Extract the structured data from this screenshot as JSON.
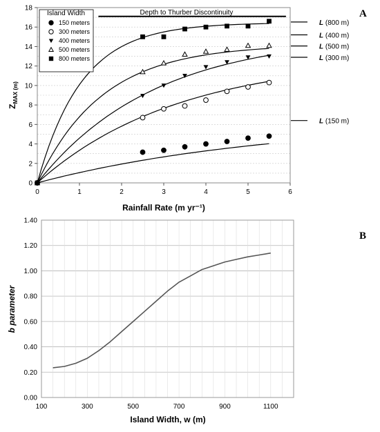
{
  "panels": {
    "a_label": "A",
    "b_label": "B"
  },
  "chart_data": [
    {
      "type": "scatter",
      "title": "",
      "xlabel": "Rainfall Rate (m yr⁻¹)",
      "ylabel": "ZMAX (m)",
      "xlim": [
        0,
        6
      ],
      "ylim": [
        0,
        18
      ],
      "xticks": [
        0,
        1,
        2,
        3,
        4,
        5,
        6
      ],
      "yticks": [
        0,
        2,
        4,
        6,
        8,
        10,
        12,
        14,
        16,
        18
      ],
      "grid": "horizontal dotted",
      "legend_title": "Island Width",
      "legend_position": "top-left",
      "annotation": "Depth to Thurber Discontinuity",
      "discontinuity_depth": 17.1,
      "series": [
        {
          "name": "150 meters",
          "marker": "circle-filled",
          "x": [
            0,
            2.5,
            3,
            3.5,
            4,
            4.5,
            5,
            5.5
          ],
          "y": [
            0,
            3.15,
            3.35,
            3.7,
            4.0,
            4.25,
            4.6,
            4.8
          ],
          "fit_asymptote": 6.4,
          "fit_k": 0.18,
          "limit_label": "L (150 m)"
        },
        {
          "name": "300 meters",
          "marker": "circle-open",
          "x": [
            0,
            2.5,
            3,
            3.5,
            4,
            4.5,
            5,
            5.5
          ],
          "y": [
            0,
            6.7,
            7.6,
            7.9,
            8.5,
            9.4,
            9.85,
            10.3
          ],
          "fit_asymptote": 12.9,
          "fit_k": 0.3,
          "limit_label": "L (300 m)"
        },
        {
          "name": "400 meters",
          "marker": "triangle-down-filled",
          "x": [
            0,
            2.5,
            3,
            3.5,
            4,
            4.5,
            5,
            5.5
          ],
          "y": [
            0,
            8.95,
            10.0,
            11.0,
            11.9,
            12.4,
            12.9,
            13.0
          ],
          "fit_asymptote": 15.2,
          "fit_k": 0.36,
          "limit_label": "L (400 m)"
        },
        {
          "name": "500 meters",
          "marker": "triangle-up-open",
          "x": [
            0,
            2.5,
            3,
            3.5,
            4,
            4.5,
            5,
            5.5
          ],
          "y": [
            0,
            11.4,
            12.3,
            13.2,
            13.5,
            13.7,
            14.1,
            14.1
          ],
          "fit_asymptote": 14.2,
          "fit_k": 0.65,
          "limit_label": "L (500 m)"
        },
        {
          "name": "800 meters",
          "marker": "square-filled",
          "x": [
            0,
            2.5,
            3,
            3.5,
            4,
            4.5,
            5,
            5.5
          ],
          "y": [
            0,
            15.0,
            15.0,
            15.8,
            16.0,
            16.1,
            16.1,
            16.6
          ],
          "fit_asymptote": 16.45,
          "fit_k": 0.95,
          "limit_label": "L (800 m)"
        }
      ]
    },
    {
      "type": "line",
      "title": "",
      "xlabel": "Island Width, w (m)",
      "ylabel": "b parameter",
      "xlim": [
        100,
        1200
      ],
      "ylim": [
        0.0,
        1.4
      ],
      "xticks": [
        100,
        300,
        500,
        700,
        900,
        1100
      ],
      "yticks": [
        0.0,
        0.2,
        0.4,
        0.6,
        0.8,
        1.0,
        1.2,
        1.4
      ],
      "ytick_labels": [
        "0.00",
        "0.20",
        "0.40",
        "0.60",
        "0.80",
        "1.00",
        "1.20",
        "1.40"
      ],
      "grid": "both",
      "series": [
        {
          "name": "",
          "x": [
            150,
            200,
            250,
            300,
            350,
            400,
            450,
            500,
            550,
            600,
            650,
            700,
            750,
            800,
            850,
            900,
            950,
            1000,
            1050,
            1100
          ],
          "y": [
            0.235,
            0.245,
            0.27,
            0.31,
            0.37,
            0.44,
            0.52,
            0.6,
            0.68,
            0.76,
            0.84,
            0.91,
            0.96,
            1.01,
            1.04,
            1.07,
            1.09,
            1.11,
            1.125,
            1.14
          ]
        }
      ]
    }
  ]
}
